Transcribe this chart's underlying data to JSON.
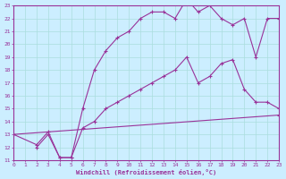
{
  "xlabel": "Windchill (Refroidissement éolien,°C)",
  "background_color": "#cceeff",
  "grid_color": "#aadddd",
  "line_color": "#993399",
  "xlim": [
    0,
    23
  ],
  "ylim": [
    11,
    23
  ],
  "xticks": [
    0,
    1,
    2,
    3,
    4,
    5,
    6,
    7,
    8,
    9,
    10,
    11,
    12,
    13,
    14,
    15,
    16,
    17,
    18,
    19,
    20,
    21,
    22,
    23
  ],
  "yticks": [
    11,
    12,
    13,
    14,
    15,
    16,
    17,
    18,
    19,
    20,
    21,
    22,
    23
  ],
  "line1_x": [
    0,
    23
  ],
  "line1_y": [
    13.0,
    14.5
  ],
  "line2_x": [
    2,
    3,
    4,
    5,
    6,
    7,
    8,
    9,
    10,
    11,
    12,
    13,
    14,
    15,
    16,
    17,
    18,
    19,
    20,
    21,
    22,
    23
  ],
  "line2_y": [
    12.0,
    13.0,
    11.2,
    11.2,
    13.5,
    14.0,
    15.0,
    15.5,
    16.0,
    16.5,
    17.0,
    17.5,
    18.0,
    19.0,
    17.0,
    17.5,
    18.5,
    18.8,
    16.5,
    15.5,
    15.5,
    15.0
  ],
  "line3_x": [
    0,
    2,
    3,
    4,
    5,
    6,
    7,
    8,
    9,
    10,
    11,
    12,
    13,
    14,
    15,
    16,
    17,
    18,
    19,
    20,
    21,
    22,
    23
  ],
  "line3_y": [
    13.0,
    12.2,
    13.2,
    11.2,
    11.2,
    15.0,
    18.0,
    19.5,
    20.5,
    21.0,
    22.0,
    22.5,
    22.5,
    22.0,
    23.5,
    22.5,
    23.0,
    22.0,
    21.5,
    22.0,
    19.0,
    22.0,
    22.0
  ]
}
